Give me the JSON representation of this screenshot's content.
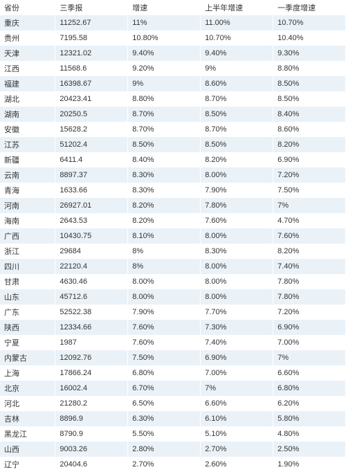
{
  "table": {
    "columns": [
      "省份",
      "三季报",
      "增速",
      "上半年增速",
      "一季度增速"
    ],
    "col_widths_pct": [
      16,
      21,
      21,
      21,
      21
    ],
    "header_bg": "#ffffff",
    "row_bg_odd": "#eaf2f8",
    "row_bg_even": "#ffffff",
    "text_color": "#333333",
    "font_size": 11,
    "rows": [
      [
        "重庆",
        "11252.67",
        "11%",
        "11.00%",
        "10.70%"
      ],
      [
        "贵州",
        "7195.58",
        "10.80%",
        "10.70%",
        "10.40%"
      ],
      [
        "天津",
        "12321.02",
        "9.40%",
        "9.40%",
        "9.30%"
      ],
      [
        "江西",
        "11568.6",
        "9.20%",
        "9%",
        "8.80%"
      ],
      [
        "福建",
        "16398.67",
        "9%",
        "8.60%",
        "8.50%"
      ],
      [
        "湖北",
        "20423.41",
        "8.80%",
        "8.70%",
        "8.50%"
      ],
      [
        "湖南",
        "20250.5",
        "8.70%",
        "8.50%",
        "8.40%"
      ],
      [
        "安徽",
        "15628.2",
        "8.70%",
        "8.70%",
        "8.60%"
      ],
      [
        "江苏",
        "51202.4",
        "8.50%",
        "8.50%",
        "8.20%"
      ],
      [
        "新疆",
        "6411.4",
        "8.40%",
        "8.20%",
        "6.90%"
      ],
      [
        "云南",
        "8897.37",
        "8.30%",
        "8.00%",
        "7.20%"
      ],
      [
        "青海",
        "1633.66",
        "8.30%",
        "7.90%",
        "7.50%"
      ],
      [
        "河南",
        "26927.01",
        "8.20%",
        "7.80%",
        "7%"
      ],
      [
        "海南",
        "2643.53",
        "8.20%",
        "7.60%",
        "4.70%"
      ],
      [
        "广西",
        "10430.75",
        "8.10%",
        "8.00%",
        "7.60%"
      ],
      [
        "浙江",
        "29684",
        "8%",
        "8.30%",
        "8.20%"
      ],
      [
        "四川",
        "22120.4",
        "8%",
        "8.00%",
        "7.40%"
      ],
      [
        "甘肃",
        "4630.46",
        "8.00%",
        "8.00%",
        "7.80%"
      ],
      [
        "山东",
        "45712.6",
        "8.00%",
        "8.00%",
        "7.80%"
      ],
      [
        "广东",
        "52522.38",
        "7.90%",
        "7.70%",
        "7.20%"
      ],
      [
        "陕西",
        "12334.66",
        "7.60%",
        "7.30%",
        "6.90%"
      ],
      [
        "宁夏",
        "1987",
        "7.60%",
        "7.40%",
        "7.00%"
      ],
      [
        "内蒙古",
        "12092.76",
        "7.50%",
        "6.90%",
        "7%"
      ],
      [
        "上海",
        "17866.24",
        "6.80%",
        "7.00%",
        "6.60%"
      ],
      [
        "北京",
        "16002.4",
        "6.70%",
        "7%",
        "6.80%"
      ],
      [
        "河北",
        "21280.2",
        "6.50%",
        "6.60%",
        "6.20%"
      ],
      [
        "吉林",
        "8896.9",
        "6.30%",
        "6.10%",
        "5.80%"
      ],
      [
        "黑龙江",
        "8790.9",
        "5.50%",
        "5.10%",
        "4.80%"
      ],
      [
        "山西",
        "9003.26",
        "2.80%",
        "2.70%",
        "2.50%"
      ],
      [
        "辽宁",
        "20404.6",
        "2.70%",
        "2.60%",
        "1.90%"
      ]
    ]
  }
}
